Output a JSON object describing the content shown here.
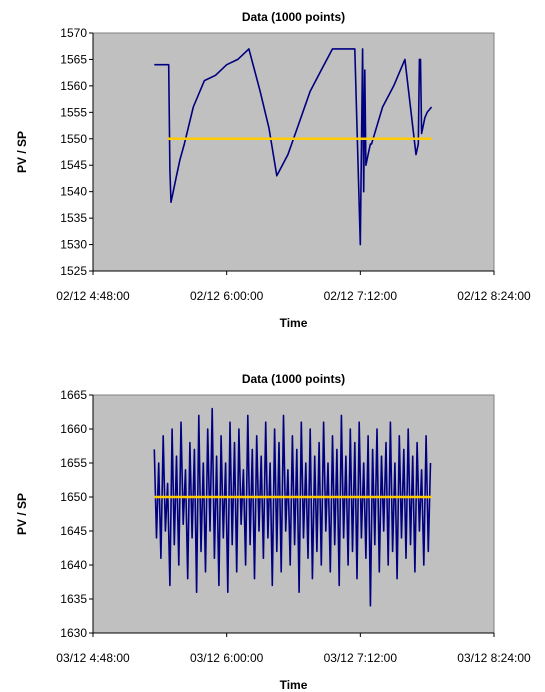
{
  "chart_data": [
    {
      "type": "line",
      "title": "Data (1000 points)",
      "xlabel": "Time",
      "ylabel": "PV / SP",
      "ylim": [
        1525,
        1570
      ],
      "ytick_step": 5,
      "xticks": [
        "02/12 4:48:00",
        "02/12 6:00:00",
        "02/12 7:12:00",
        "02/12 8:24:00"
      ],
      "xlim_hours": [
        4.8,
        8.4
      ],
      "plot_bg": "#c0c0c0",
      "grid": false,
      "series": [
        {
          "role": "PV",
          "color": "#000080",
          "x_hours": [
            5.35,
            5.47,
            5.48,
            5.49,
            5.5,
            5.51,
            5.53,
            5.55,
            5.58,
            5.62,
            5.7,
            5.8,
            5.9,
            6.0,
            6.1,
            6.2,
            6.3,
            6.38,
            6.45,
            6.55,
            6.65,
            6.75,
            6.85,
            6.95,
            7.05,
            7.15,
            7.2,
            7.22,
            7.23,
            7.24,
            7.25,
            7.26,
            7.27,
            7.28,
            7.29,
            7.3,
            7.4,
            7.5,
            7.6,
            7.7,
            7.72,
            7.73,
            7.74,
            7.75,
            7.76,
            7.77,
            7.78,
            7.8,
            7.84
          ],
          "y": [
            1564,
            1564,
            1564,
            1544,
            1538,
            1539,
            1541,
            1543,
            1546,
            1549,
            1556,
            1561,
            1562,
            1564,
            1565,
            1567,
            1559,
            1552,
            1543,
            1547,
            1553,
            1559,
            1563,
            1567,
            1567,
            1567,
            1530,
            1567,
            1540,
            1563,
            1545,
            1546,
            1547,
            1548,
            1549,
            1549,
            1556,
            1560,
            1565,
            1547,
            1549,
            1565,
            1565,
            1551,
            1552,
            1553,
            1554,
            1555,
            1556
          ]
        },
        {
          "role": "SP",
          "color": "#ffcc00",
          "x_hours": [
            5.47,
            7.84
          ],
          "y": [
            1550,
            1550
          ]
        }
      ]
    },
    {
      "type": "line",
      "title": "Data (1000 points)",
      "xlabel": "Time",
      "ylabel": "PV / SP",
      "ylim": [
        1630,
        1665
      ],
      "ytick_step": 5,
      "xticks": [
        "03/12 4:48:00",
        "03/12 6:00:00",
        "03/12 7:12:00",
        "03/12 8:24:00"
      ],
      "xlim_hours": [
        4.8,
        8.4
      ],
      "plot_bg": "#c0c0c0",
      "grid": false,
      "series": [
        {
          "role": "PV",
          "color": "#000080",
          "x_hours": [
            5.35,
            5.37,
            5.39,
            5.41,
            5.43,
            5.45,
            5.47,
            5.49,
            5.51,
            5.53,
            5.55,
            5.57,
            5.59,
            5.61,
            5.63,
            5.65,
            5.67,
            5.69,
            5.71,
            5.73,
            5.75,
            5.77,
            5.79,
            5.81,
            5.83,
            5.85,
            5.87,
            5.89,
            5.91,
            5.93,
            5.95,
            5.97,
            5.99,
            6.01,
            6.03,
            6.05,
            6.07,
            6.09,
            6.11,
            6.13,
            6.15,
            6.17,
            6.19,
            6.21,
            6.23,
            6.25,
            6.27,
            6.29,
            6.31,
            6.33,
            6.35,
            6.37,
            6.39,
            6.41,
            6.43,
            6.45,
            6.47,
            6.49,
            6.51,
            6.53,
            6.55,
            6.57,
            6.59,
            6.61,
            6.63,
            6.65,
            6.67,
            6.69,
            6.71,
            6.73,
            6.75,
            6.77,
            6.79,
            6.81,
            6.83,
            6.85,
            6.87,
            6.89,
            6.91,
            6.93,
            6.95,
            6.97,
            6.99,
            7.01,
            7.03,
            7.05,
            7.07,
            7.09,
            7.11,
            7.13,
            7.15,
            7.17,
            7.19,
            7.21,
            7.23,
            7.25,
            7.27,
            7.29,
            7.31,
            7.33,
            7.35,
            7.37,
            7.39,
            7.41,
            7.43,
            7.45,
            7.47,
            7.49,
            7.51,
            7.53,
            7.55,
            7.57,
            7.59,
            7.61,
            7.63,
            7.65,
            7.67,
            7.69,
            7.71,
            7.73,
            7.75,
            7.77,
            7.79,
            7.81,
            7.83
          ],
          "y": [
            1657,
            1644,
            1655,
            1641,
            1659,
            1645,
            1652,
            1637,
            1660,
            1643,
            1656,
            1640,
            1661,
            1646,
            1654,
            1638,
            1658,
            1644,
            1657,
            1636,
            1662,
            1642,
            1655,
            1639,
            1660,
            1645,
            1663,
            1641,
            1656,
            1637,
            1659,
            1644,
            1655,
            1636,
            1661,
            1643,
            1658,
            1639,
            1660,
            1646,
            1654,
            1640,
            1662,
            1643,
            1657,
            1638,
            1659,
            1645,
            1656,
            1641,
            1661,
            1644,
            1655,
            1637,
            1660,
            1642,
            1658,
            1639,
            1662,
            1645,
            1654,
            1640,
            1659,
            1643,
            1657,
            1636,
            1661,
            1644,
            1655,
            1641,
            1660,
            1638,
            1656,
            1642,
            1658,
            1640,
            1661,
            1645,
            1655,
            1639,
            1659,
            1643,
            1657,
            1637,
            1662,
            1644,
            1656,
            1640,
            1660,
            1642,
            1658,
            1638,
            1661,
            1644,
            1655,
            1641,
            1659,
            1634,
            1657,
            1643,
            1660,
            1639,
            1656,
            1645,
            1658,
            1640,
            1661,
            1642,
            1655,
            1638,
            1659,
            1644,
            1657,
            1641,
            1660,
            1643,
            1656,
            1639,
            1658,
            1645,
            1654,
            1640,
            1659,
            1642,
            1655
          ]
        },
        {
          "role": "SP",
          "color": "#ffcc00",
          "x_hours": [
            5.35,
            7.84
          ],
          "y": [
            1650,
            1650
          ]
        }
      ]
    }
  ]
}
